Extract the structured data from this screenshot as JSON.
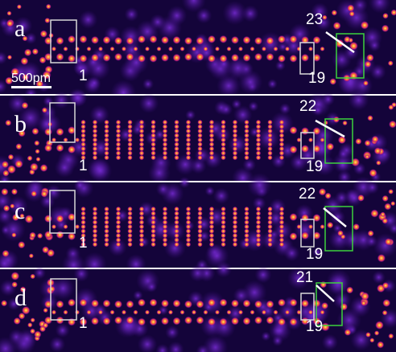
{
  "panels": [
    {
      "label": "a",
      "left_number": 1,
      "right_number": 19,
      "top_number": 23
    },
    {
      "label": "b",
      "left_number": 1,
      "right_number": 19,
      "top_number": 22
    },
    {
      "label": "c",
      "left_number": 1,
      "right_number": 19,
      "top_number": 22
    },
    {
      "label": "d",
      "left_number": 1,
      "right_number": 19,
      "top_number": 21
    }
  ],
  "scale_bar": "500pm"
}
